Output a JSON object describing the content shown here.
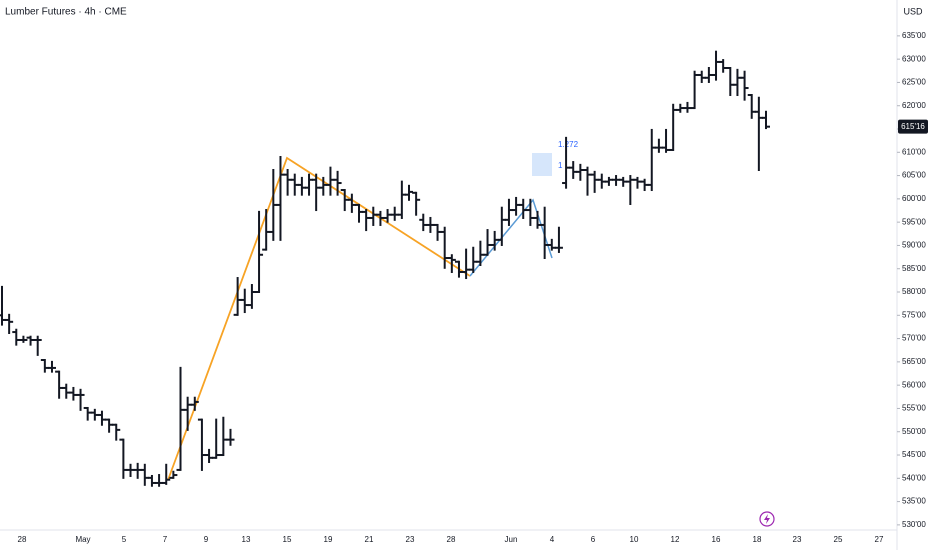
{
  "chart_data": {
    "type": "ohlc",
    "title": "Lumber Futures · 4h · CME",
    "currency": "USD",
    "color": "#131722",
    "xlabels": [
      "28",
      "May",
      "5",
      "7",
      "9",
      "13",
      "15",
      "19",
      "21",
      "23",
      "28",
      "Jun",
      "4",
      "6",
      "10",
      "12",
      "16",
      "18",
      "23",
      "25",
      "27"
    ],
    "ylim": [
      528.9,
      642.7
    ],
    "yticks": [
      {
        "value": 530,
        "label": "530'00"
      },
      {
        "value": 535,
        "label": "535'00"
      },
      {
        "value": 540,
        "label": "540'00"
      },
      {
        "value": 545,
        "label": "545'00"
      },
      {
        "value": 550,
        "label": "550'00"
      },
      {
        "value": 555,
        "label": "555'00"
      },
      {
        "value": 560,
        "label": "560'00"
      },
      {
        "value": 565,
        "label": "565'00"
      },
      {
        "value": 570,
        "label": "570'00"
      },
      {
        "value": 575,
        "label": "575'00"
      },
      {
        "value": 580,
        "label": "580'00"
      },
      {
        "value": 585,
        "label": "585'00"
      },
      {
        "value": 590,
        "label": "590'00"
      },
      {
        "value": 595,
        "label": "595'00"
      },
      {
        "value": 600,
        "label": "600'00"
      },
      {
        "value": 605,
        "label": "605'00"
      },
      {
        "value": 610,
        "label": "610'00"
      },
      {
        "value": 615,
        "label": "615'00"
      },
      {
        "value": 620,
        "label": "620'00"
      },
      {
        "value": 625,
        "label": "625'00"
      },
      {
        "value": 630,
        "label": "630'00"
      },
      {
        "value": 635,
        "label": "635'00"
      }
    ],
    "last_price": {
      "value": 615.5,
      "label": "615'16"
    },
    "annotations": [
      "1.272",
      "1"
    ],
    "bars": [
      [
        575.0,
        581.1,
        573.0,
        574.0
      ],
      [
        574.0,
        575.1,
        571.2,
        573.6
      ],
      [
        571.4,
        571.9,
        568.7,
        569.7
      ],
      [
        569.7,
        570.4,
        569.3,
        569.7
      ],
      [
        570.2,
        570.4,
        568.7,
        569.7
      ],
      [
        569.7,
        570.4,
        566.5,
        569.7
      ],
      [
        565.4,
        565.4,
        562.9,
        563.7
      ],
      [
        563.7,
        565.0,
        562.9,
        563.7
      ],
      [
        562.9,
        562.9,
        557.3,
        559.4
      ],
      [
        559.4,
        560.1,
        557.3,
        558.4
      ],
      [
        558.4,
        559.4,
        556.9,
        557.9
      ],
      [
        557.9,
        559.0,
        554.7,
        557.9
      ],
      [
        555.1,
        555.1,
        552.6,
        554.1
      ],
      [
        554.1,
        554.7,
        552.6,
        553.6
      ],
      [
        553.6,
        554.3,
        551.5,
        552.6
      ],
      [
        552.6,
        552.6,
        550.0,
        551.5
      ],
      [
        551.5,
        551.5,
        548.3,
        550.4
      ],
      [
        548.3,
        548.3,
        540.1,
        541.8
      ],
      [
        541.8,
        542.9,
        540.5,
        541.8
      ],
      [
        541.8,
        543.1,
        540.1,
        541.8
      ],
      [
        541.8,
        542.9,
        538.6,
        540.1
      ],
      [
        540.1,
        540.5,
        538.4,
        539.0
      ],
      [
        539.0,
        540.7,
        538.4,
        539.0
      ],
      [
        539.0,
        542.9,
        538.8,
        539.7
      ],
      [
        540.1,
        541.4,
        540.1,
        540.7
      ],
      [
        541.8,
        563.7,
        541.8,
        554.7
      ],
      [
        554.7,
        557.3,
        550.4,
        555.8
      ],
      [
        555.8,
        557.3,
        554.7,
        556.4
      ],
      [
        552.6,
        552.6,
        541.8,
        545.0
      ],
      [
        545.0,
        546.1,
        543.5,
        544.4
      ],
      [
        544.4,
        552.6,
        544.4,
        545.0
      ],
      [
        545.0,
        553.0,
        545.0,
        548.3
      ],
      [
        548.3,
        550.4,
        547.2,
        548.3
      ],
      [
        575.1,
        583.0,
        575.1,
        578.3
      ],
      [
        578.3,
        580.5,
        575.7,
        577.2
      ],
      [
        577.2,
        581.5,
        576.6,
        580.0
      ],
      [
        580.0,
        597.2,
        580.0,
        588.0
      ],
      [
        589.1,
        597.6,
        589.1,
        592.9
      ],
      [
        592.9,
        606.2,
        591.2,
        598.7
      ],
      [
        598.7,
        609.0,
        591.2,
        605.2
      ],
      [
        605.2,
        606.2,
        600.9,
        604.1
      ],
      [
        604.1,
        605.2,
        600.9,
        603.0
      ],
      [
        603.0,
        604.5,
        600.9,
        602.4
      ],
      [
        602.4,
        605.2,
        600.9,
        604.1
      ],
      [
        604.1,
        605.2,
        597.6,
        602.4
      ],
      [
        602.4,
        604.5,
        600.9,
        603.0
      ],
      [
        603.0,
        606.7,
        600.9,
        604.1
      ],
      [
        604.1,
        605.8,
        600.9,
        603.4
      ],
      [
        601.9,
        601.9,
        597.6,
        599.8
      ],
      [
        599.8,
        600.9,
        597.2,
        598.7
      ],
      [
        598.7,
        598.7,
        595.1,
        597.2
      ],
      [
        597.2,
        597.6,
        593.3,
        595.9
      ],
      [
        595.9,
        598.1,
        594.4,
        596.6
      ],
      [
        596.6,
        597.2,
        594.4,
        595.9
      ],
      [
        595.9,
        597.6,
        595.1,
        596.6
      ],
      [
        596.6,
        598.1,
        595.5,
        596.6
      ],
      [
        596.6,
        603.7,
        595.9,
        600.9
      ],
      [
        600.9,
        602.8,
        599.8,
        601.5
      ],
      [
        601.3,
        601.3,
        596.6,
        599.8
      ],
      [
        595.5,
        596.6,
        593.3,
        594.4
      ],
      [
        594.4,
        595.9,
        592.9,
        594.4
      ],
      [
        594.4,
        594.4,
        591.2,
        592.9
      ],
      [
        592.9,
        593.8,
        585.2,
        587.3
      ],
      [
        587.3,
        587.9,
        584.3,
        586.9
      ],
      [
        586.5,
        586.5,
        583.3,
        584.3
      ],
      [
        584.3,
        589.1,
        583.0,
        584.8
      ],
      [
        584.8,
        589.5,
        584.3,
        586.5
      ],
      [
        586.5,
        590.8,
        585.8,
        588.0
      ],
      [
        588.0,
        593.3,
        588.0,
        590.1
      ],
      [
        590.1,
        592.9,
        589.1,
        591.2
      ],
      [
        591.2,
        598.1,
        590.1,
        595.5
      ],
      [
        595.5,
        599.8,
        594.4,
        597.6
      ],
      [
        597.6,
        600.2,
        596.6,
        598.7
      ],
      [
        598.7,
        599.8,
        595.9,
        597.6
      ],
      [
        597.6,
        599.8,
        594.4,
        595.9
      ],
      [
        595.9,
        597.2,
        593.8,
        594.4
      ],
      [
        594.4,
        598.1,
        587.3,
        590.1
      ],
      [
        590.1,
        591.2,
        589.1,
        589.5
      ],
      [
        589.5,
        593.8,
        588.6,
        589.5
      ],
      [
        603.4,
        613.1,
        602.4,
        606.7
      ],
      [
        606.7,
        607.9,
        604.5,
        605.8
      ],
      [
        605.8,
        607.3,
        604.1,
        606.2
      ],
      [
        606.2,
        606.7,
        600.9,
        605.2
      ],
      [
        605.2,
        605.8,
        601.5,
        604.1
      ],
      [
        604.1,
        605.2,
        602.4,
        603.7
      ],
      [
        603.7,
        604.5,
        603.0,
        604.1
      ],
      [
        604.1,
        604.9,
        603.0,
        604.1
      ],
      [
        604.1,
        604.5,
        602.8,
        603.7
      ],
      [
        603.7,
        604.9,
        598.9,
        604.1
      ],
      [
        604.1,
        604.5,
        602.4,
        603.7
      ],
      [
        603.7,
        604.1,
        601.9,
        603.0
      ],
      [
        603.0,
        614.8,
        601.9,
        611.0
      ],
      [
        611.0,
        612.7,
        610.1,
        611.0
      ],
      [
        611.0,
        614.8,
        610.1,
        610.5
      ],
      [
        610.5,
        620.2,
        610.5,
        619.1
      ],
      [
        619.1,
        620.2,
        618.7,
        619.5
      ],
      [
        619.5,
        620.6,
        618.7,
        619.5
      ],
      [
        619.5,
        627.3,
        619.5,
        626.6
      ],
      [
        626.6,
        627.3,
        625.1,
        626.0
      ],
      [
        626.0,
        628.1,
        625.1,
        626.6
      ],
      [
        626.6,
        631.6,
        625.6,
        629.4
      ],
      [
        629.4,
        629.8,
        627.3,
        628.1
      ],
      [
        628.1,
        628.1,
        622.3,
        624.5
      ],
      [
        624.5,
        627.7,
        622.3,
        626.0
      ],
      [
        626.0,
        627.3,
        621.3,
        623.8
      ],
      [
        622.3,
        622.3,
        617.4,
        618.7
      ],
      [
        618.7,
        621.7,
        606.2,
        617.4
      ],
      [
        617.4,
        618.7,
        615.2,
        615.5
      ]
    ]
  }
}
